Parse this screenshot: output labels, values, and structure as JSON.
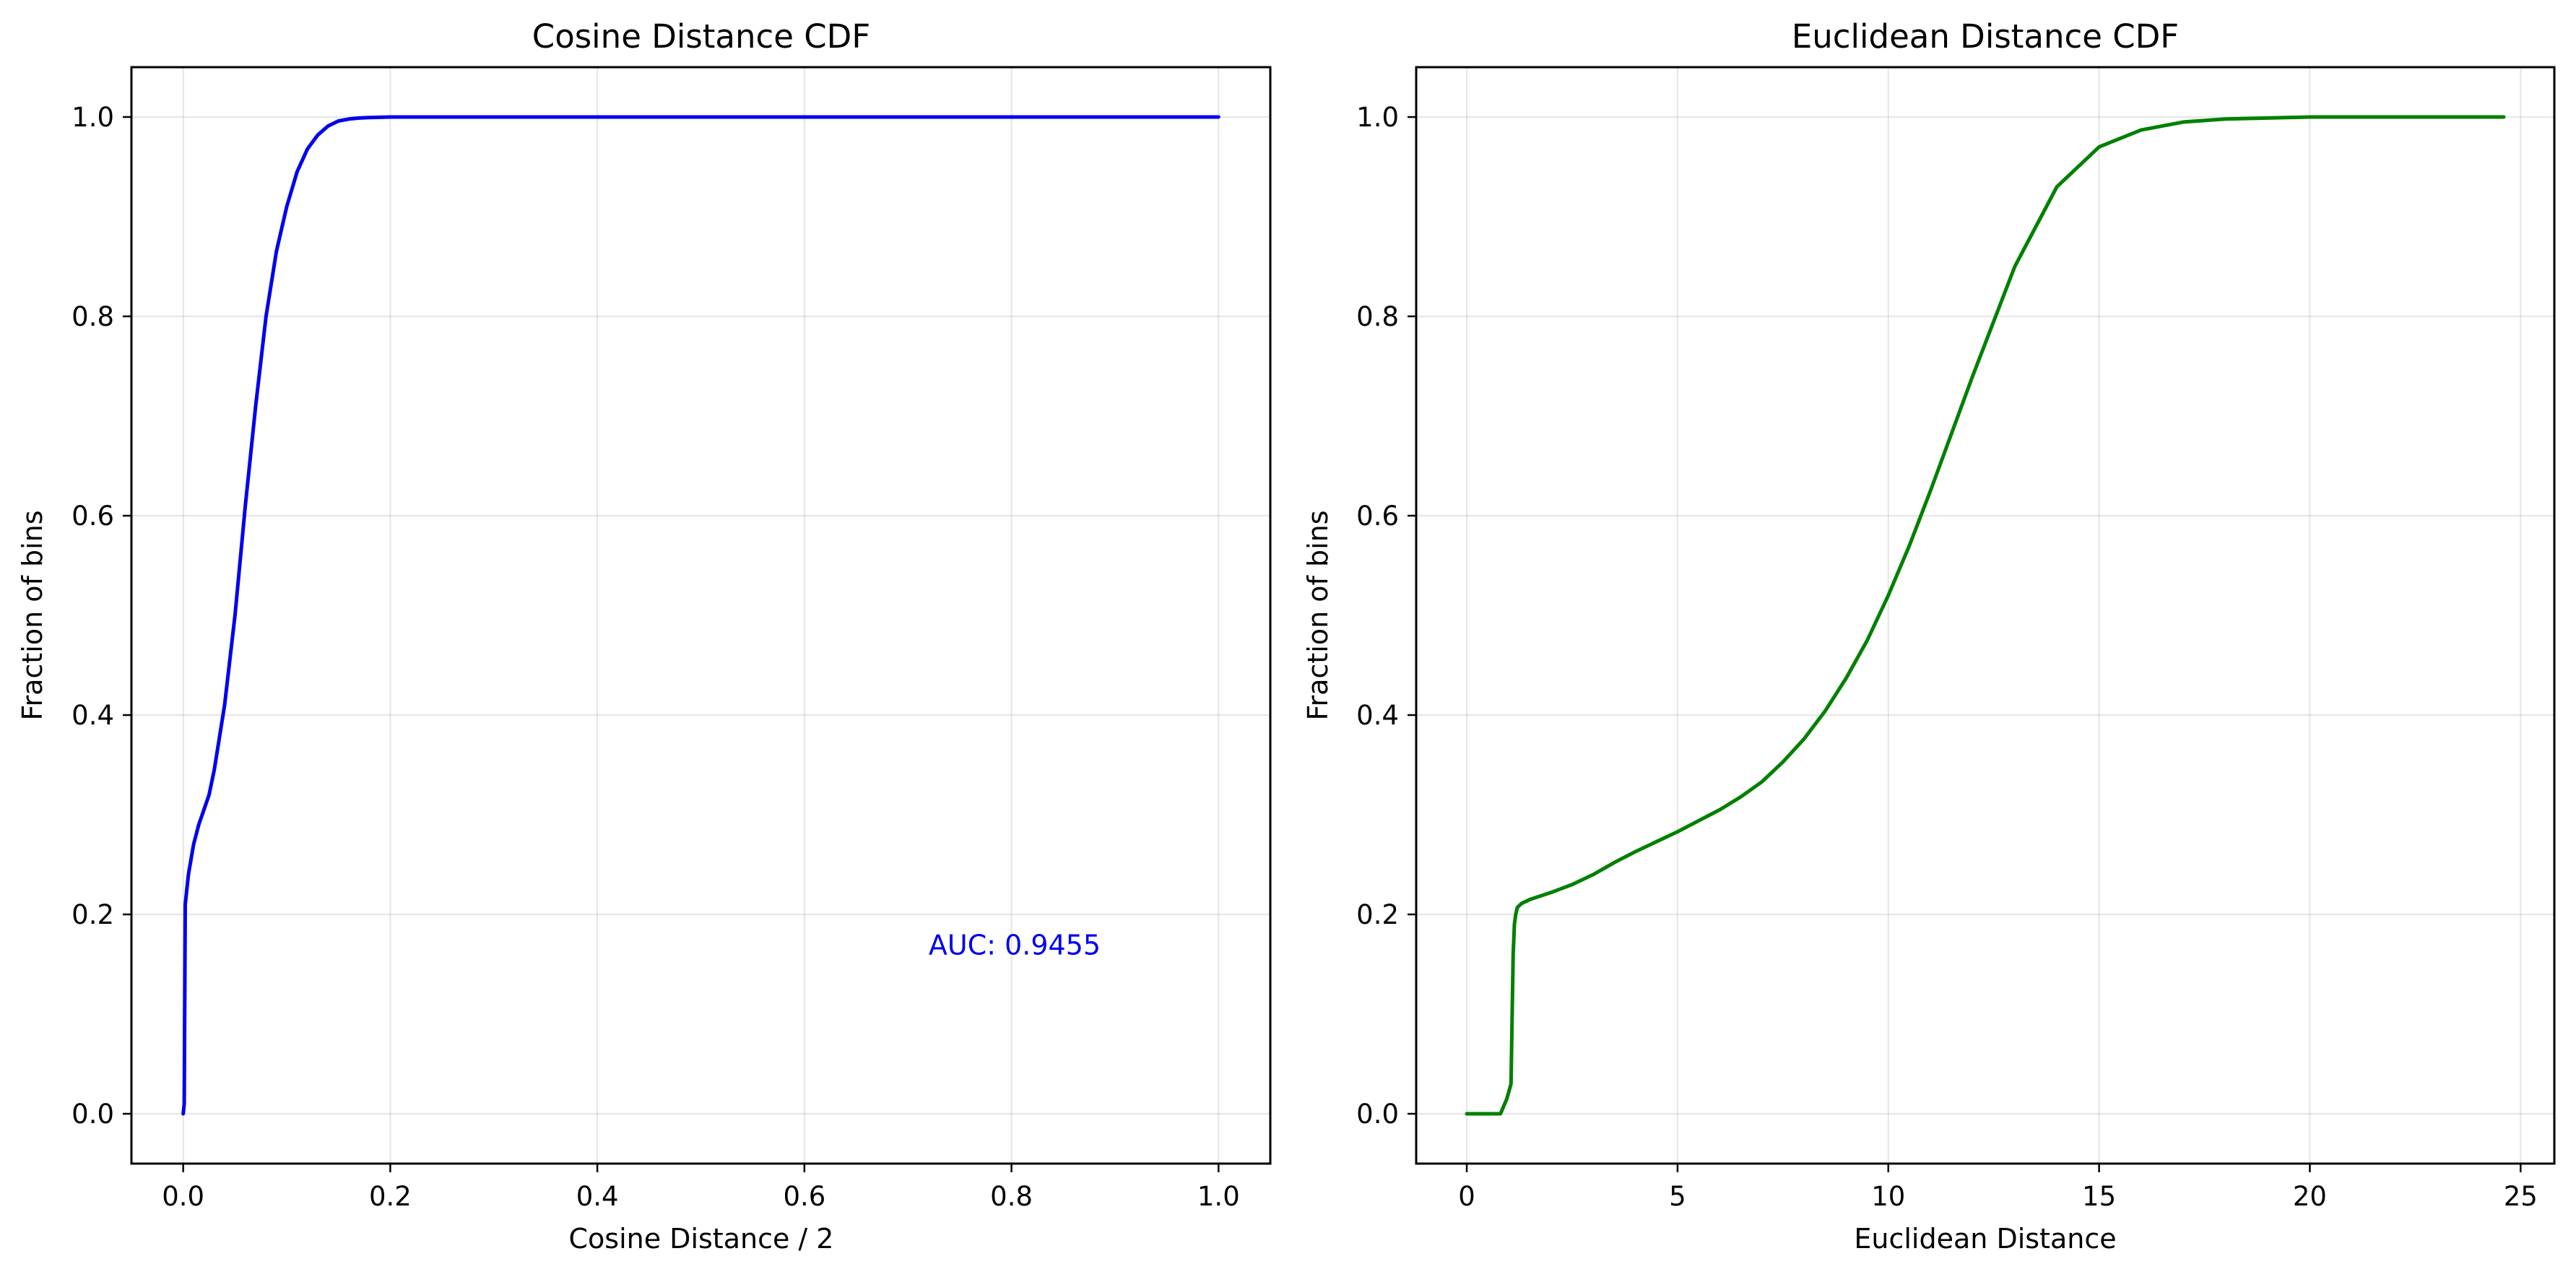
{
  "chart_data": [
    {
      "type": "line",
      "title": "Cosine Distance CDF",
      "xlabel": "Cosine Distance / 2",
      "ylabel": "Fraction of bins",
      "xlim": [
        -0.05,
        1.05
      ],
      "ylim": [
        -0.05,
        1.05
      ],
      "xticks": [
        0.0,
        0.2,
        0.4,
        0.6,
        0.8,
        1.0
      ],
      "xtick_labels": [
        "0.0",
        "0.2",
        "0.4",
        "0.6",
        "0.8",
        "1.0"
      ],
      "yticks": [
        0.0,
        0.2,
        0.4,
        0.6,
        0.8,
        1.0
      ],
      "ytick_labels": [
        "0.0",
        "0.2",
        "0.4",
        "0.6",
        "0.8",
        "1.0"
      ],
      "grid": true,
      "series": [
        {
          "color": "#0000ee",
          "x": [
            0.0,
            0.001,
            0.002,
            0.005,
            0.01,
            0.015,
            0.02,
            0.025,
            0.03,
            0.04,
            0.05,
            0.06,
            0.07,
            0.08,
            0.09,
            0.1,
            0.11,
            0.12,
            0.13,
            0.14,
            0.15,
            0.16,
            0.17,
            0.18,
            0.2,
            0.25,
            0.3,
            0.5,
            0.7,
            1.0
          ],
          "y": [
            0.0,
            0.01,
            0.21,
            0.24,
            0.27,
            0.29,
            0.305,
            0.32,
            0.345,
            0.41,
            0.5,
            0.61,
            0.71,
            0.8,
            0.865,
            0.91,
            0.945,
            0.968,
            0.982,
            0.991,
            0.996,
            0.998,
            0.999,
            0.9995,
            1.0,
            1.0,
            1.0,
            1.0,
            1.0,
            1.0
          ]
        }
      ],
      "annotations": [
        {
          "text": "AUC: 0.9455",
          "x": 0.72,
          "y": 0.17,
          "color": "#0000ee"
        }
      ]
    },
    {
      "type": "line",
      "title": "Euclidean Distance CDF",
      "xlabel": "Euclidean Distance",
      "ylabel": "Fraction of bins",
      "xlim": [
        -1.2,
        25.8
      ],
      "ylim": [
        -0.05,
        1.05
      ],
      "xticks": [
        0,
        5,
        10,
        15,
        20,
        25
      ],
      "xtick_labels": [
        "0",
        "5",
        "10",
        "15",
        "20",
        "25"
      ],
      "yticks": [
        0.0,
        0.2,
        0.4,
        0.6,
        0.8,
        1.0
      ],
      "ytick_labels": [
        "0.0",
        "0.2",
        "0.4",
        "0.6",
        "0.8",
        "1.0"
      ],
      "grid": true,
      "series": [
        {
          "color": "#008000",
          "x": [
            0.0,
            0.5,
            0.8,
            0.95,
            1.05,
            1.1,
            1.13,
            1.16,
            1.2,
            1.3,
            1.5,
            2.0,
            2.5,
            3.0,
            3.5,
            4.0,
            5.0,
            6.0,
            6.5,
            7.0,
            7.5,
            8.0,
            8.5,
            9.0,
            9.5,
            10.0,
            10.5,
            11.0,
            12.0,
            13.0,
            14.0,
            15.0,
            16.0,
            17.0,
            18.0,
            19.0,
            20.0,
            22.0,
            24.6
          ],
          "y": [
            0.0,
            0.0,
            0.0,
            0.015,
            0.03,
            0.16,
            0.19,
            0.2,
            0.207,
            0.211,
            0.215,
            0.222,
            0.23,
            0.24,
            0.252,
            0.263,
            0.283,
            0.305,
            0.318,
            0.333,
            0.353,
            0.376,
            0.404,
            0.437,
            0.475,
            0.52,
            0.57,
            0.625,
            0.74,
            0.85,
            0.93,
            0.97,
            0.987,
            0.995,
            0.998,
            0.999,
            1.0,
            1.0,
            1.0
          ]
        }
      ],
      "annotations": []
    }
  ]
}
